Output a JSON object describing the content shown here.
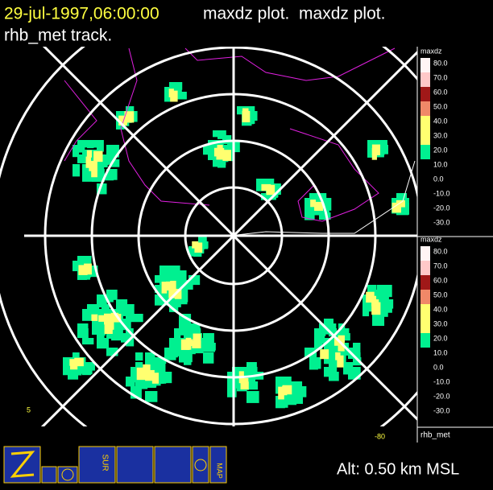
{
  "header": {
    "time": "29-jul-1997,06:00:00",
    "plot": "maxdz plot.  maxdz plot.",
    "track": "rhb_met track."
  },
  "legends": [
    {
      "title": "maxdz",
      "labels": [
        "80.0",
        "70.0",
        "60.0",
        "50.0",
        "40.0",
        "30.0",
        "20.0",
        "10.0",
        "0.0",
        "-10.0",
        "-20.0",
        "-30.0"
      ]
    },
    {
      "title": "maxdz",
      "labels": [
        "80.0",
        "70.0",
        "60.0",
        "50.0",
        "40.0",
        "30.0",
        "20.0",
        "10.0",
        "0.0",
        "-10.0",
        "-20.0",
        "-30.0"
      ]
    }
  ],
  "legend_colors": [
    "#fff5f5",
    "#ffc8c8",
    "#a01818",
    "#f08868",
    "#ffff70",
    "#ffff70",
    "#00f090"
  ],
  "plot": {
    "left_label": "5",
    "bottom_label": "-80",
    "platform": "rhb_met",
    "altitude": "Alt: 0.50 km MSL"
  },
  "toolbar": {
    "survey": "SUR",
    "map": "MAP"
  }
}
